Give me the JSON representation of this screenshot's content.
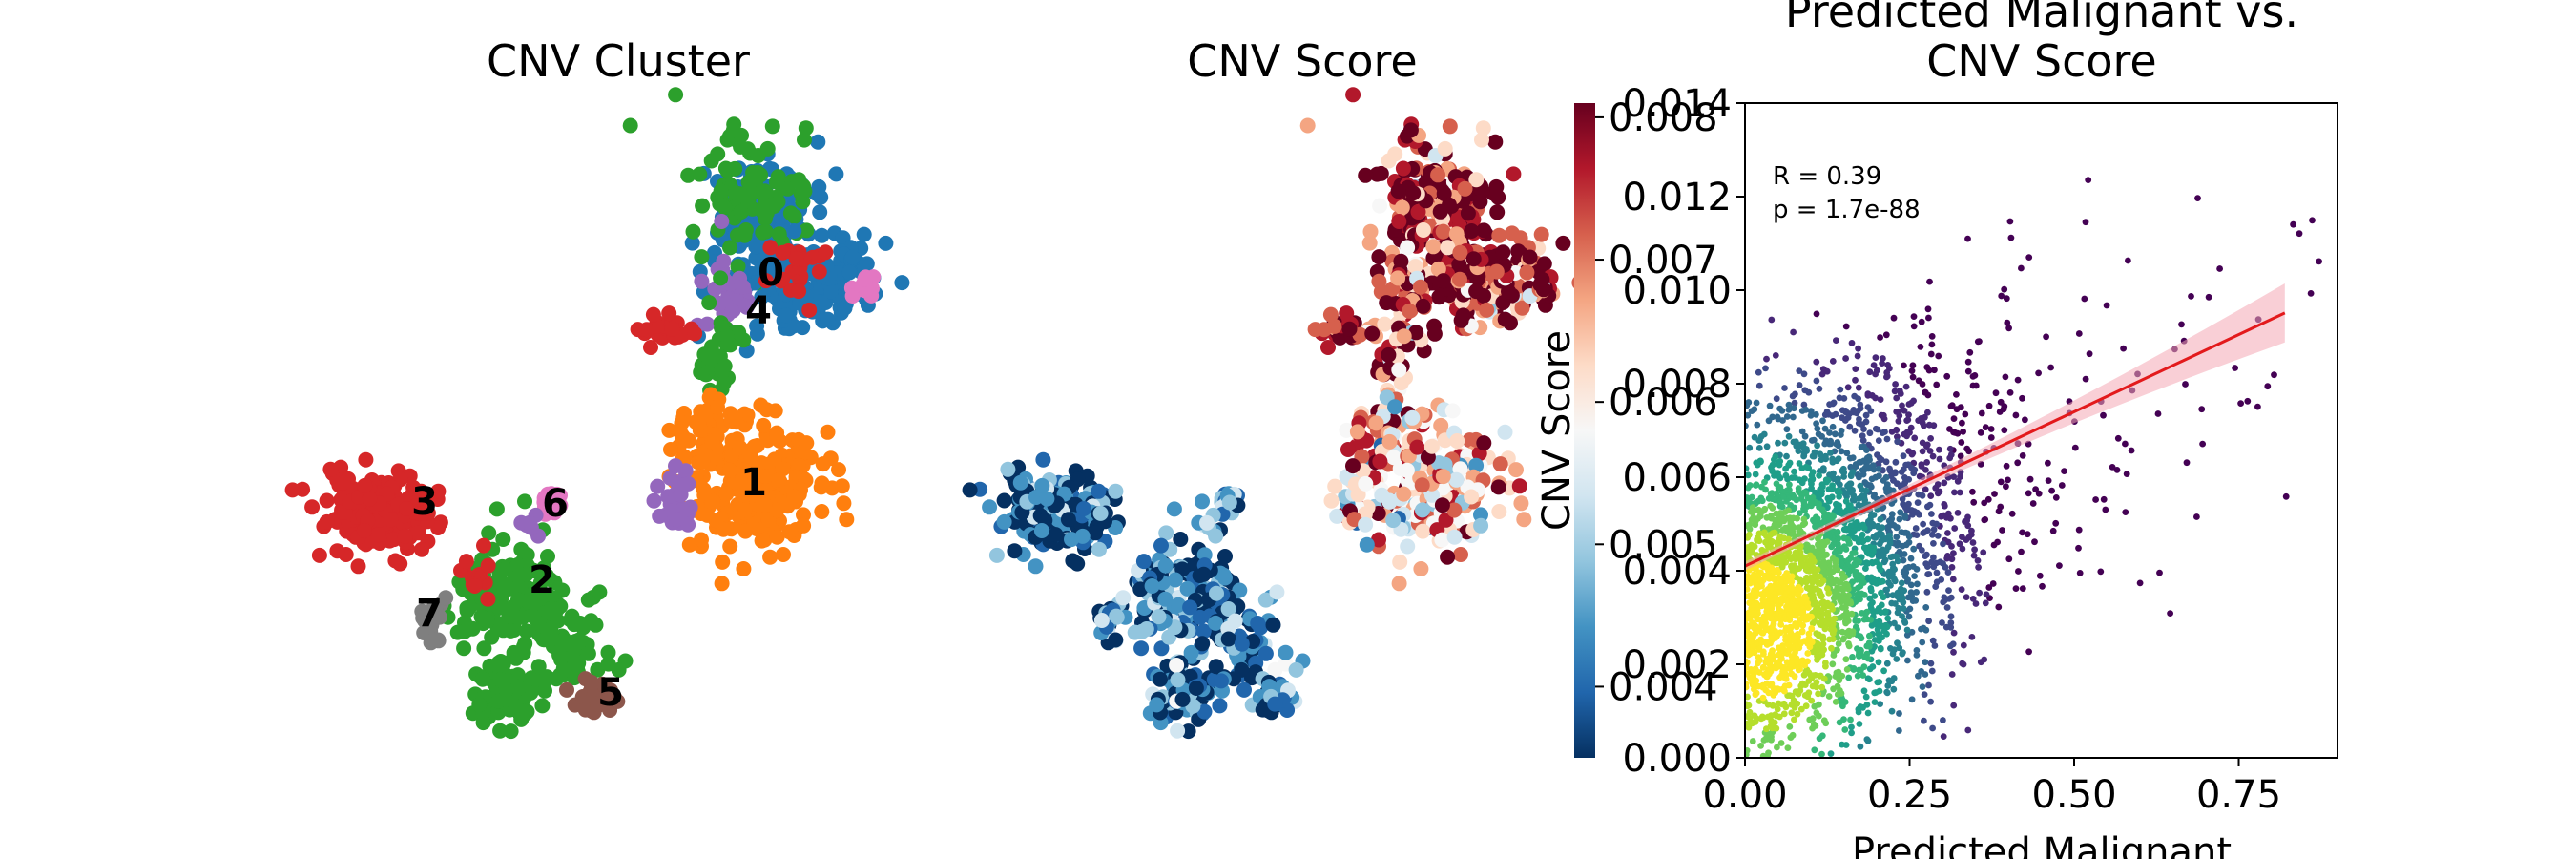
{
  "chart_data": [
    {
      "type": "scatter",
      "title": "CNV Cluster",
      "cluster_labels": [
        "0",
        "1",
        "2",
        "3",
        "4",
        "5",
        "6",
        "7"
      ],
      "cluster_colors": [
        "#1f77b4",
        "#ff7f0e",
        "#2ca02c",
        "#d62728",
        "#9467bd",
        "#8c564b",
        "#e377c2",
        "#7f7f7f"
      ]
    },
    {
      "type": "scatter",
      "title": "CNV Score",
      "colormap": "RdBu_r",
      "colorbar": {
        "ticks": [
          "0.004",
          "0.005",
          "0.006",
          "0.007",
          "0.008"
        ],
        "range": [
          0.0035,
          0.0081
        ]
      }
    },
    {
      "type": "scatter",
      "title_lines": [
        "Predicted Malignant vs.",
        "CNV Score"
      ],
      "xlabel": "Predicted Malignant",
      "ylabel": "CNV Score",
      "xlim": [
        0,
        0.9
      ],
      "ylim": [
        0,
        0.014
      ],
      "xticks": [
        "0.00",
        "0.25",
        "0.50",
        "0.75"
      ],
      "yticks": [
        "0.000",
        "0.002",
        "0.004",
        "0.006",
        "0.008",
        "0.010",
        "0.012",
        "0.014"
      ],
      "annotation": [
        "R = 0.39",
        "p = 1.7e-88"
      ],
      "regression": {
        "slope": 0.0066,
        "intercept": 0.0041,
        "x_range": [
          0,
          0.82
        ]
      },
      "density_colormap": "viridis"
    }
  ]
}
